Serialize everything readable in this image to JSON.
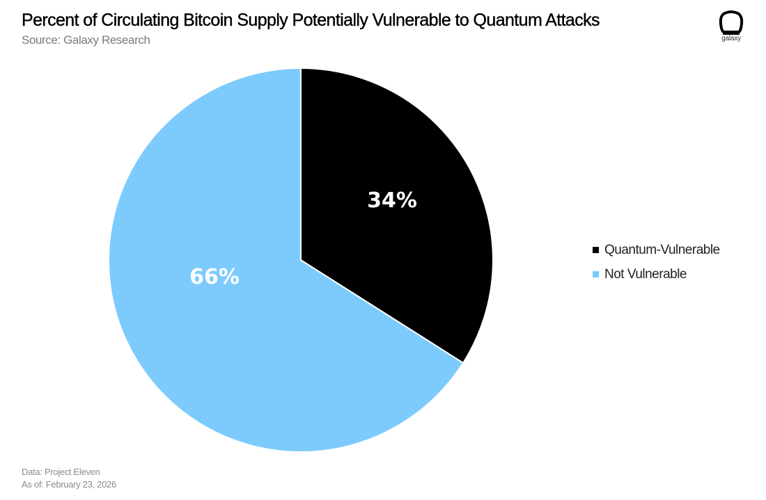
{
  "header": {
    "title": "Percent of Circulating Bitcoin Supply Potentially Vulnerable to Quantum Attacks",
    "subtitle": "Source: Galaxy Research"
  },
  "logo": {
    "icon": "galaxy-logo-icon",
    "text": "galaxy"
  },
  "footer": {
    "data_source": "Data: Project Eleven",
    "as_of": "As of: February 23, 2026"
  },
  "legend": [
    {
      "label": "Quantum-Vulnerable",
      "color": "#000000"
    },
    {
      "label": "Not Vulnerable",
      "color": "#7DCBFC"
    }
  ],
  "chart_data": {
    "type": "pie",
    "title": "Percent of Circulating Bitcoin Supply Potentially Vulnerable to Quantum Attacks",
    "subtitle": "Source: Galaxy Research",
    "categories": [
      "Quantum-Vulnerable",
      "Not Vulnerable"
    ],
    "values": [
      34,
      66
    ],
    "labels": [
      "34%",
      "66%"
    ],
    "colors": [
      "#000000",
      "#7DCBFC"
    ],
    "start_angle": "12 o'clock, clockwise",
    "legend_position": "right",
    "annotations": [
      "Data: Project Eleven",
      "As of: February 23, 2026"
    ]
  }
}
